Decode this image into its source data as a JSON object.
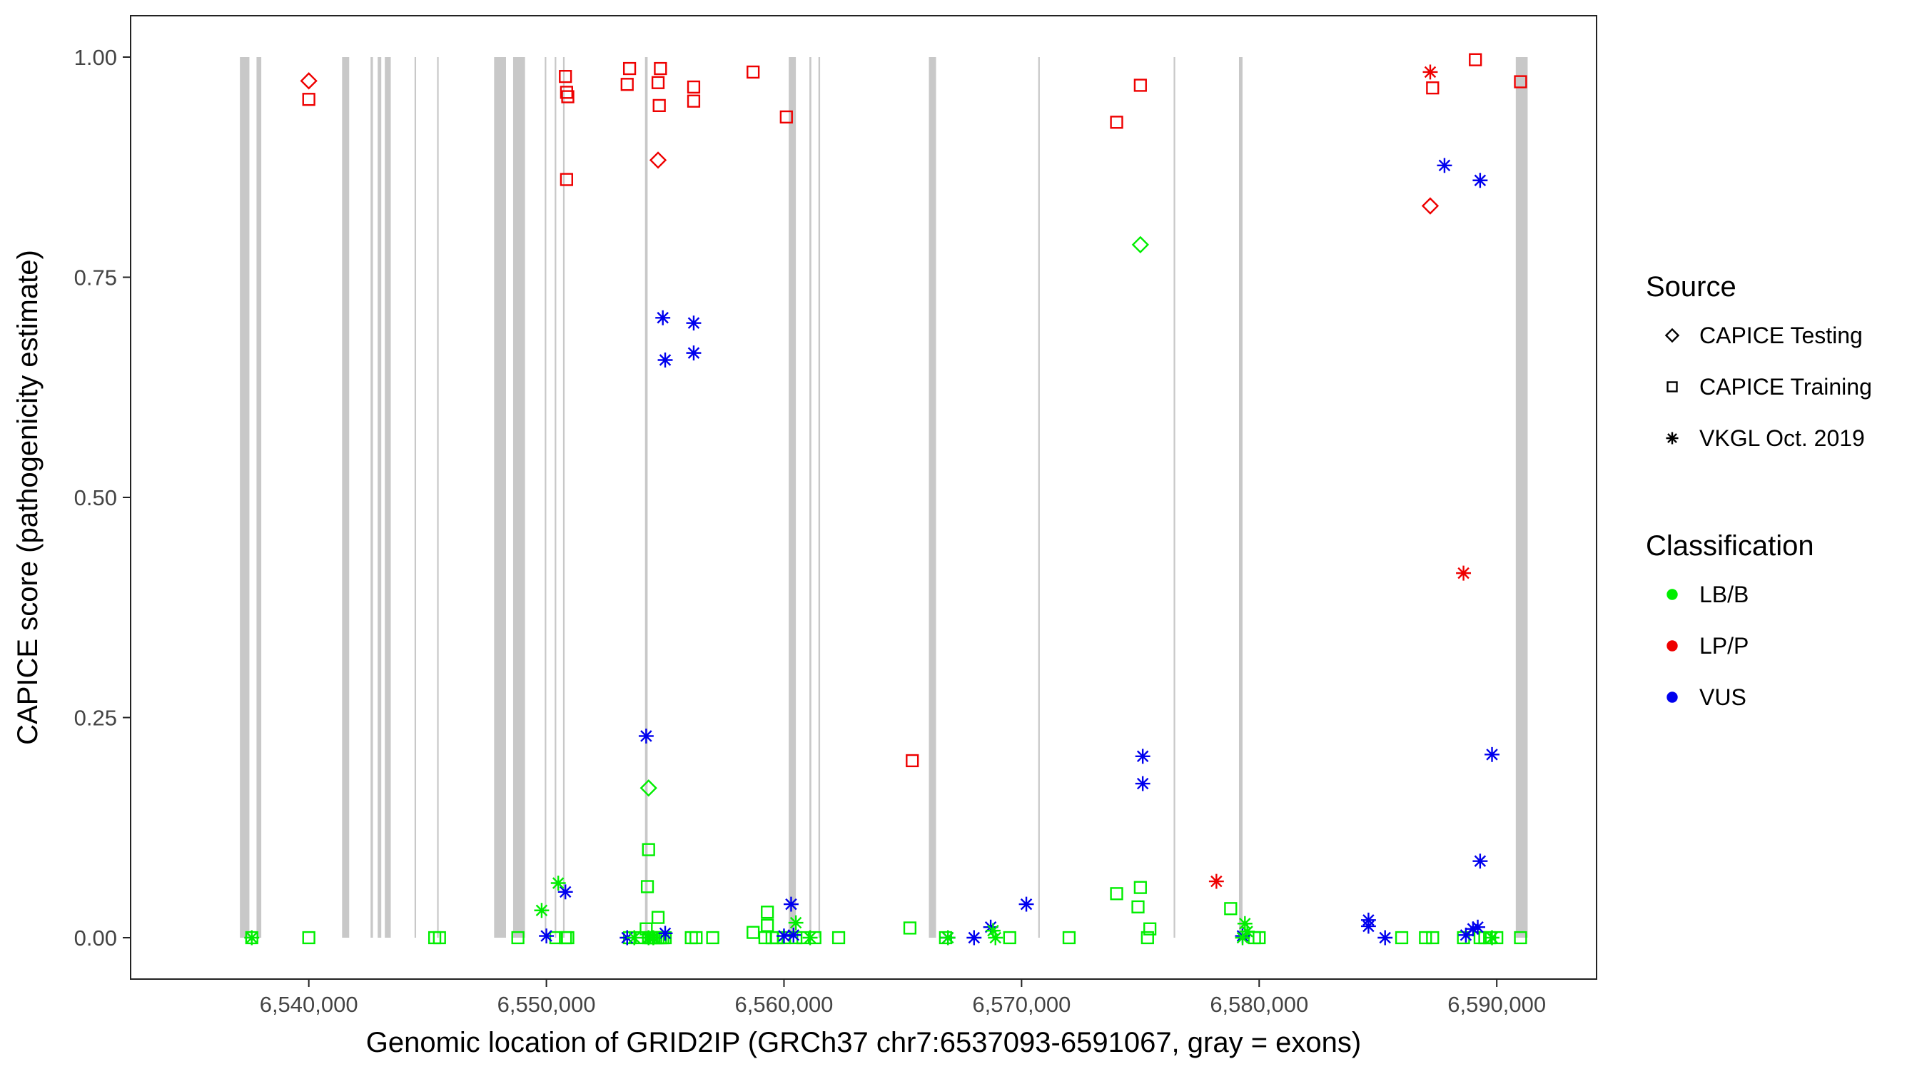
{
  "chart_data": {
    "type": "scatter",
    "title": "",
    "xlabel": "Genomic location of GRID2IP (GRCh37 chr7:6537093-6591067, gray = exons)",
    "ylabel": "CAPICE score (pathogenicity estimate)",
    "xlim": [
      6532500,
      6594200
    ],
    "ylim": [
      -0.047,
      1.047
    ],
    "grid": false,
    "x_ticks": [
      6540000,
      6550000,
      6560000,
      6570000,
      6580000,
      6590000
    ],
    "x_tick_labels": [
      "6,540,000",
      "6,550,000",
      "6,560,000",
      "6,570,000",
      "6,580,000",
      "6,590,000"
    ],
    "y_ticks": [
      0,
      0.25,
      0.5,
      0.75,
      1.0
    ],
    "y_tick_labels": [
      "0.00",
      "0.25",
      "0.50",
      "0.75",
      "1.00"
    ],
    "exons": [
      [
        6537100,
        6537500
      ],
      [
        6537800,
        6538000
      ],
      [
        6541400,
        6541700
      ],
      [
        6542600,
        6542700
      ],
      [
        6542900,
        6543050
      ],
      [
        6543200,
        6543450
      ],
      [
        6544450,
        6544500
      ],
      [
        6545400,
        6545450
      ],
      [
        6547800,
        6548300
      ],
      [
        6548600,
        6549100
      ],
      [
        6549930,
        6549990
      ],
      [
        6550350,
        6550410
      ],
      [
        6550700,
        6550760
      ],
      [
        6554150,
        6554260
      ],
      [
        6560200,
        6560500
      ],
      [
        6561070,
        6561150
      ],
      [
        6561450,
        6561520
      ],
      [
        6566100,
        6566400
      ],
      [
        6570700,
        6570760
      ],
      [
        6576400,
        6576460
      ],
      [
        6579150,
        6579300
      ],
      [
        6590800,
        6591300
      ]
    ],
    "legend": {
      "position": "right",
      "source_title": "Source",
      "source_items": [
        {
          "label": "CAPICE Testing",
          "shape": "diamond"
        },
        {
          "label": "CAPICE Training",
          "shape": "square"
        },
        {
          "label": "VKGL Oct. 2019",
          "shape": "asterisk"
        }
      ],
      "class_title": "Classification",
      "class_items": [
        {
          "label": "LB/B",
          "color": "#00ee00"
        },
        {
          "label": "LP/P",
          "color": "#ee0000"
        },
        {
          "label": "VUS",
          "color": "#0000ee"
        }
      ]
    },
    "series": [
      {
        "shape": "diamond",
        "class": "LP/P",
        "x": [
          6540000,
          6554700,
          6587200
        ],
        "y": [
          0.973,
          0.883,
          0.831
        ]
      },
      {
        "shape": "diamond",
        "class": "LB/B",
        "x": [
          6554300,
          6575000
        ],
        "y": [
          0.17,
          0.787
        ]
      },
      {
        "shape": "square",
        "class": "LP/P",
        "x": [
          6540000,
          6550800,
          6550850,
          6550900,
          6550850,
          6553400,
          6553500,
          6554800,
          6554700,
          6554750,
          6556200,
          6556200,
          6558700,
          6560100,
          6565400,
          6574000,
          6575000,
          6587300,
          6589100,
          6591000
        ],
        "y": [
          0.952,
          0.978,
          0.96,
          0.955,
          0.861,
          0.969,
          0.987,
          0.987,
          0.971,
          0.945,
          0.966,
          0.95,
          0.983,
          0.932,
          0.201,
          0.926,
          0.968,
          0.965,
          0.997,
          0.972
        ]
      },
      {
        "shape": "square",
        "class": "LB/B",
        "x": [
          6537600,
          6540000,
          6545300,
          6545500,
          6548800,
          6550400,
          6550800,
          6550900,
          6553500,
          6554000,
          6554300,
          6554400,
          6554500,
          6554600,
          6554700,
          6554800,
          6554900,
          6555000,
          6554200,
          6556100,
          6556300,
          6557000,
          6558700,
          6559200,
          6559300,
          6559500,
          6559700,
          6560000,
          6560500,
          6560800,
          6561300,
          6562300,
          6565300,
          6566800,
          6569500,
          6572000,
          6574000,
          6574900,
          6575000,
          6575300,
          6575400,
          6578800,
          6579800,
          6580000,
          6586000,
          6587000,
          6587300,
          6588600,
          6589300,
          6589500,
          6589700,
          6590000,
          6591000,
          6554300,
          6554250,
          6559300,
          6554700
        ],
        "y": [
          0.0,
          0.0,
          0.0,
          0.0,
          0.0,
          0.0,
          0.0,
          0.0,
          0.0,
          0.0,
          0.0,
          0.0,
          0.0,
          0.0,
          0.0,
          0.0,
          0.0,
          0.0,
          0.01,
          0.0,
          0.0,
          0.0,
          0.006,
          0.0,
          0.029,
          0.0,
          0.0,
          0.0,
          0.0,
          0.0,
          0.0,
          0.0,
          0.011,
          0.0,
          0.0,
          0.0,
          0.05,
          0.035,
          0.057,
          0.0,
          0.01,
          0.033,
          0.0,
          0.0,
          0.0,
          0.0,
          0.0,
          0.0,
          0.0,
          0.0,
          0.0,
          0.0,
          0.0,
          0.1,
          0.058,
          0.014,
          0.023
        ]
      },
      {
        "shape": "asterisk",
        "class": "LP/P",
        "x": [
          6587200,
          6588600,
          6578200
        ],
        "y": [
          0.983,
          0.414,
          0.064
        ]
      },
      {
        "shape": "asterisk",
        "class": "VUS",
        "x": [
          6554900,
          6556200,
          6555000,
          6556200,
          6554200,
          6550800,
          6550000,
          6553400,
          6555000,
          6560300,
          6560000,
          6560400,
          6566900,
          6568000,
          6568700,
          6570200,
          6575100,
          6575100,
          6579300,
          6584600,
          6584600,
          6585300,
          6587800,
          6589300,
          6589300,
          6589800,
          6589000,
          6589200,
          6588700
        ],
        "y": [
          0.704,
          0.698,
          0.656,
          0.664,
          0.229,
          0.052,
          0.002,
          0.0,
          0.005,
          0.038,
          0.002,
          0.003,
          0.0,
          0.0,
          0.012,
          0.038,
          0.206,
          0.175,
          0.002,
          0.02,
          0.013,
          0.0,
          0.877,
          0.86,
          0.087,
          0.208,
          0.01,
          0.012,
          0.003
        ]
      },
      {
        "shape": "asterisk",
        "class": "LB/B",
        "x": [
          6537600,
          6549800,
          6550500,
          6553700,
          6554300,
          6554500,
          6560500,
          6561100,
          6566900,
          6568800,
          6568900,
          6579400,
          6579500,
          6579300,
          6589800
        ],
        "y": [
          0.0,
          0.031,
          0.062,
          0.0,
          0.0,
          0.0,
          0.017,
          0.0,
          0.0,
          0.008,
          0.0,
          0.016,
          0.007,
          0.0,
          0.0
        ]
      }
    ]
  }
}
